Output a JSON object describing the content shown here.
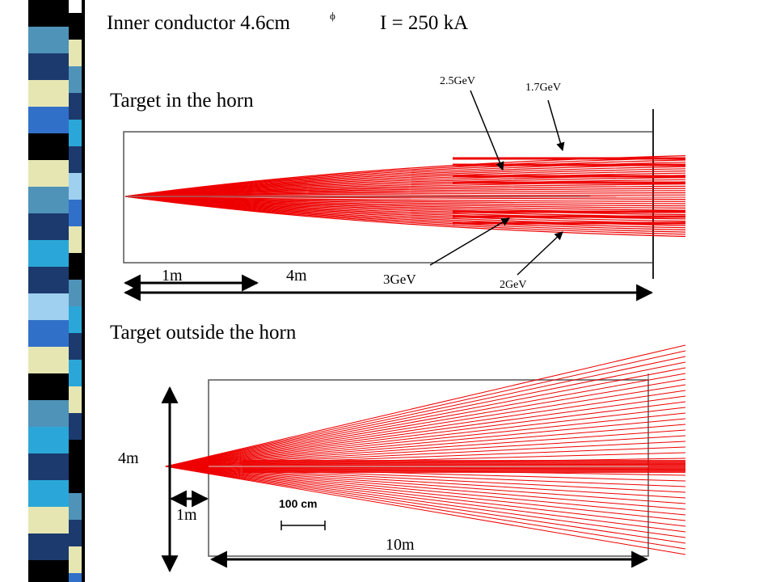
{
  "title": {
    "text": "Inner conductor 4.6cm",
    "symbol": "ϕ",
    "current": "I = 250 kA"
  },
  "top": {
    "heading": "Target in the horn",
    "labels": [
      "2.5GeV",
      "1.7GeV",
      "3GeV",
      "2GeV"
    ],
    "dims": [
      "1m",
      "4m"
    ]
  },
  "bottom": {
    "heading": "Target outside the horn",
    "dims": [
      "4m",
      "1m",
      "10m"
    ],
    "scale": "100 cm"
  }
}
